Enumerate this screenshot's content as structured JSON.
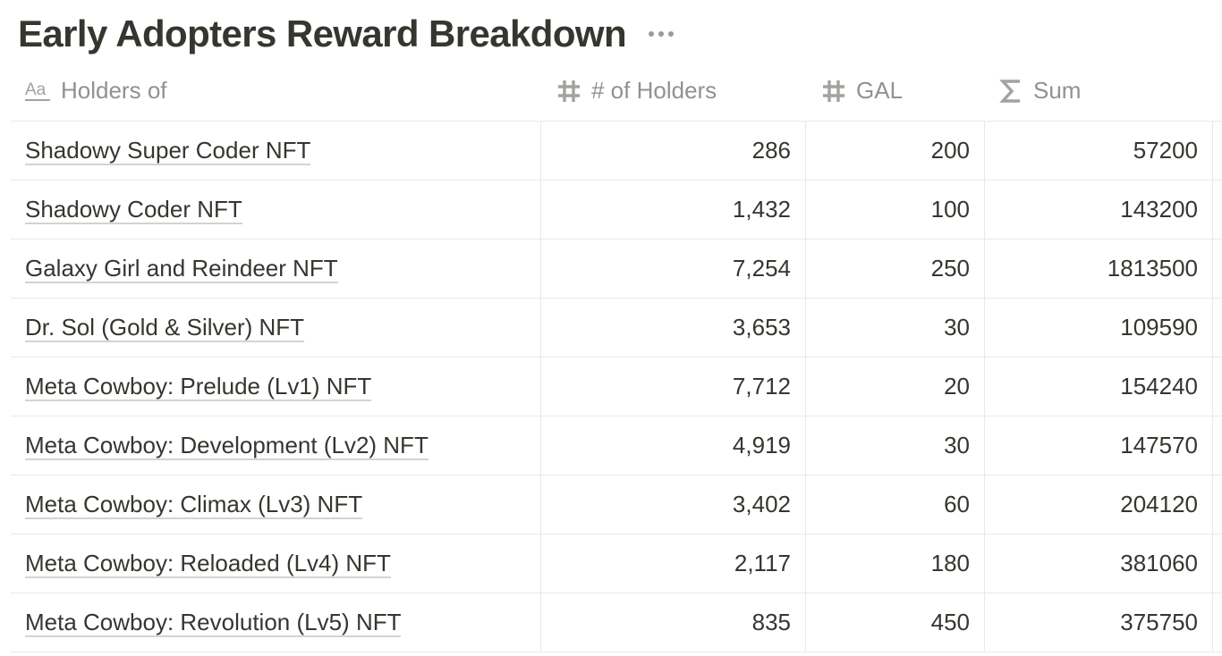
{
  "page": {
    "title": "Early Adopters Reward Breakdown",
    "more_icon": "more-horizontal-icon"
  },
  "table": {
    "columns": [
      {
        "label": "Holders of",
        "icon": "text-type-icon"
      },
      {
        "label": "# of Holders",
        "icon": "number-icon"
      },
      {
        "label": "GAL",
        "icon": "number-icon"
      },
      {
        "label": "Sum",
        "icon": "sigma-icon"
      }
    ],
    "rows": [
      {
        "name": "Shadowy Super Coder NFT",
        "holders": "286",
        "gal": "200",
        "sum": "57200"
      },
      {
        "name": "Shadowy Coder NFT",
        "holders": "1,432",
        "gal": "100",
        "sum": "143200"
      },
      {
        "name": "Galaxy Girl and Reindeer NFT",
        "holders": "7,254",
        "gal": "250",
        "sum": "1813500"
      },
      {
        "name": "Dr. Sol (Gold & Silver) NFT",
        "holders": "3,653",
        "gal": "30",
        "sum": "109590"
      },
      {
        "name": "Meta Cowboy: Prelude (Lv1) NFT",
        "holders": "7,712",
        "gal": "20",
        "sum": "154240"
      },
      {
        "name": "Meta Cowboy: Development (Lv2) NFT",
        "holders": "4,919",
        "gal": "30",
        "sum": "147570"
      },
      {
        "name": "Meta Cowboy: Climax (Lv3) NFT",
        "holders": "3,402",
        "gal": "60",
        "sum": "204120"
      },
      {
        "name": "Meta Cowboy: Reloaded (Lv4) NFT",
        "holders": "2,117",
        "gal": "180",
        "sum": "381060"
      },
      {
        "name": "Meta Cowboy: Revolution (Lv5) NFT",
        "holders": "835",
        "gal": "450",
        "sum": "375750"
      }
    ]
  },
  "colors": {
    "text": "#37352f",
    "header_text": "#91918e",
    "border": "#e9e9e7",
    "underline": "#d3d3d1"
  }
}
